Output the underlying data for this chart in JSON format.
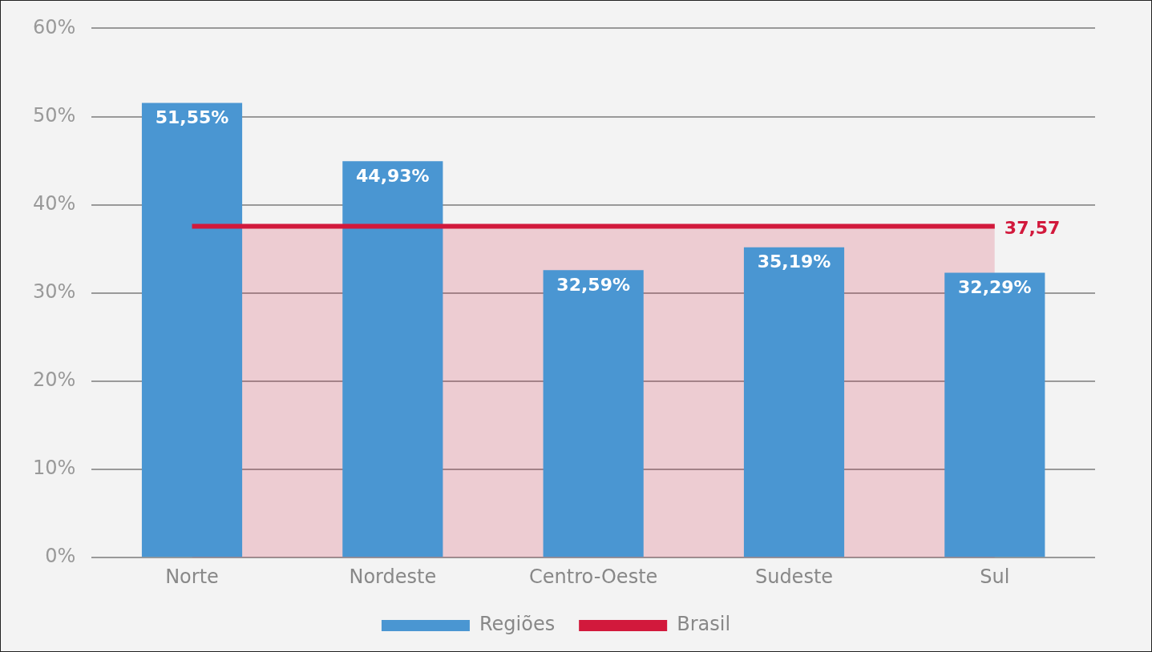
{
  "chart_data": {
    "type": "bar",
    "categories": [
      "Norte",
      "Nordeste",
      "Centro-Oeste",
      "Sudeste",
      "Sul"
    ],
    "series": [
      {
        "name": "Regiões",
        "color": "#4a96d2",
        "values": [
          51.55,
          44.93,
          32.59,
          35.19,
          32.29
        ],
        "value_labels": [
          "51,55%",
          "44,93%",
          "32,59%",
          "35,19%",
          "32,29%"
        ]
      },
      {
        "name": "Brasil",
        "type": "area",
        "color": "#d2193c",
        "values": [
          37.57,
          37.57,
          37.57,
          37.57,
          37.57
        ],
        "value_labels": [
          null,
          null,
          null,
          null,
          "37,57"
        ]
      }
    ],
    "ylim": [
      0,
      60
    ],
    "yticks": [
      {
        "value": 0,
        "label": "0%"
      },
      {
        "value": 10,
        "label": "10%"
      },
      {
        "value": 20,
        "label": "20%"
      },
      {
        "value": 30,
        "label": "30%"
      },
      {
        "value": 40,
        "label": "40%"
      },
      {
        "value": 50,
        "label": "50%"
      },
      {
        "value": 60,
        "label": "60%"
      }
    ],
    "grid": "y",
    "legend": "bottom"
  }
}
